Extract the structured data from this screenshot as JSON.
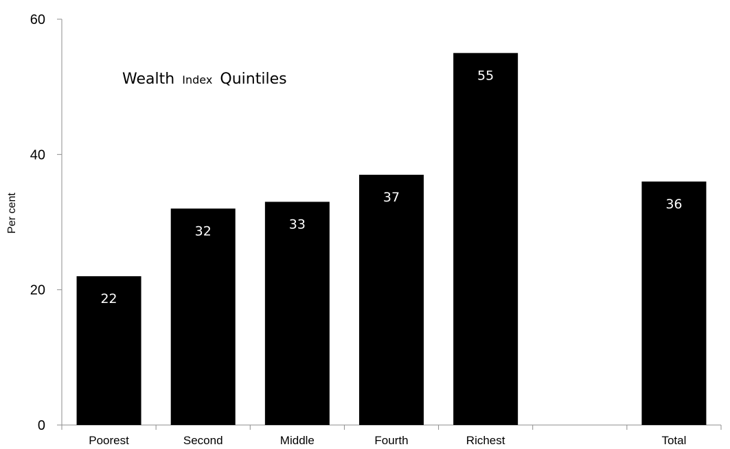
{
  "chart_data": {
    "type": "bar",
    "categories": [
      "Poorest",
      "Second",
      "Middle",
      "Fourth",
      "Richest",
      "",
      "Total"
    ],
    "values": [
      22,
      32,
      33,
      37,
      55,
      null,
      36
    ],
    "data_labels": [
      "22",
      "32",
      "33",
      "37",
      "55",
      "",
      "36"
    ],
    "ylabel": "Per cent",
    "xlabel": "",
    "ylim": [
      0,
      60
    ],
    "yticks": [
      0,
      20,
      40,
      60
    ],
    "grid": false,
    "bar_color": "#000000",
    "axis_color": "#8c8c8c",
    "annotation": {
      "part1": "Wealth",
      "part2": "Index",
      "part3": "Quintiles"
    }
  }
}
